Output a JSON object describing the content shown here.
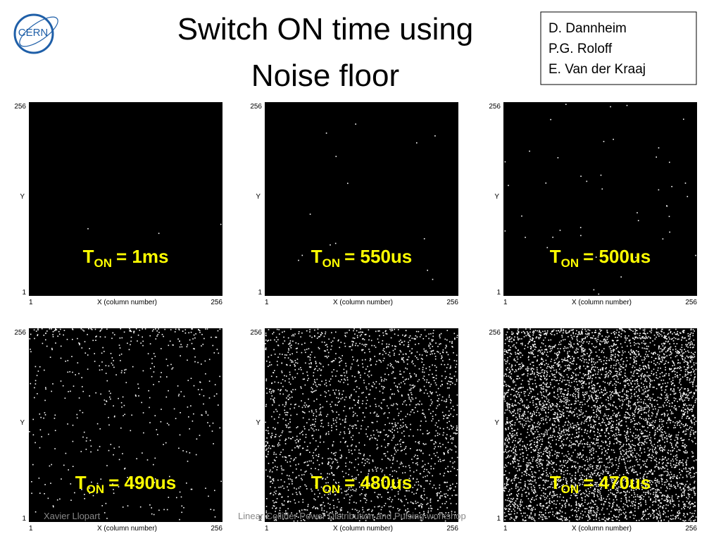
{
  "header": {
    "title": [
      "Switch ON time using",
      "Noise floor"
    ],
    "logo": "CERN",
    "authors": [
      "D. Dannheim",
      "P.G. Roloff",
      "E. Van der Kraaj"
    ]
  },
  "panels": [
    {
      "symbol": "T",
      "subscript": "ON",
      "value": "= 1ms",
      "y_top": "256",
      "y_label": "Y",
      "y_bottom": "1",
      "x_left": "1",
      "x_label": "X (column number)",
      "x_right": "256"
    },
    {
      "symbol": "T",
      "subscript": "ON",
      "value": "= 550us",
      "y_top": "256",
      "y_label": "Y",
      "y_bottom": "1",
      "x_left": "1",
      "x_label": "X (column number)",
      "x_right": "256"
    },
    {
      "symbol": "T",
      "subscript": "ON",
      "value": "= 500us",
      "y_top": "256",
      "y_label": "Y",
      "y_bottom": "1",
      "x_left": "1",
      "x_label": "X (column number)",
      "x_right": "256"
    },
    {
      "symbol": "T",
      "subscript": "ON",
      "value": "= 490us",
      "y_top": "256",
      "y_label": "Y",
      "y_bottom": "1",
      "x_left": "1",
      "x_label": "X (column number)",
      "x_right": "256"
    },
    {
      "symbol": "T",
      "subscript": "ON",
      "value": "= 480us",
      "y_top": "256",
      "y_label": "Y",
      "y_bottom": "1",
      "x_left": "1",
      "x_label": "X (column number)",
      "x_right": "256"
    },
    {
      "symbol": "T",
      "subscript": "ON",
      "value": "= 470us",
      "y_top": "256",
      "y_label": "Y",
      "y_bottom": "1",
      "x_left": "1",
      "x_label": "X (column number)",
      "x_right": "256"
    }
  ],
  "footer": {
    "author": "Xavier Llopart",
    "event": "Linear Collider Power Distribution and Pulsing workshop"
  }
}
